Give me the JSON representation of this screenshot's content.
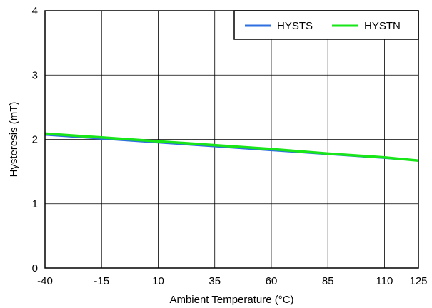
{
  "chart_data": {
    "type": "line",
    "title": "",
    "xlabel": "Ambient Temperature (°C)",
    "ylabel": "Hysteresis (mT)",
    "xlim": [
      -40,
      125
    ],
    "ylim": [
      0,
      4
    ],
    "x_ticks": [
      -40,
      -15,
      10,
      35,
      60,
      85,
      110,
      125
    ],
    "y_ticks": [
      0,
      1,
      2,
      3,
      4
    ],
    "grid": true,
    "legend_placement": "top-right",
    "series": [
      {
        "name": "HYSTS",
        "color": "#2f6fe0",
        "x": [
          -40,
          -15,
          10,
          35,
          60,
          85,
          110,
          125
        ],
        "y": [
          2.07,
          2.01,
          1.95,
          1.89,
          1.83,
          1.77,
          1.71,
          1.67
        ]
      },
      {
        "name": "HYSTN",
        "color": "#19e619",
        "x": [
          -40,
          -15,
          10,
          35,
          60,
          85,
          110,
          125
        ],
        "y": [
          2.09,
          2.03,
          1.97,
          1.91,
          1.85,
          1.78,
          1.72,
          1.67
        ]
      }
    ]
  }
}
